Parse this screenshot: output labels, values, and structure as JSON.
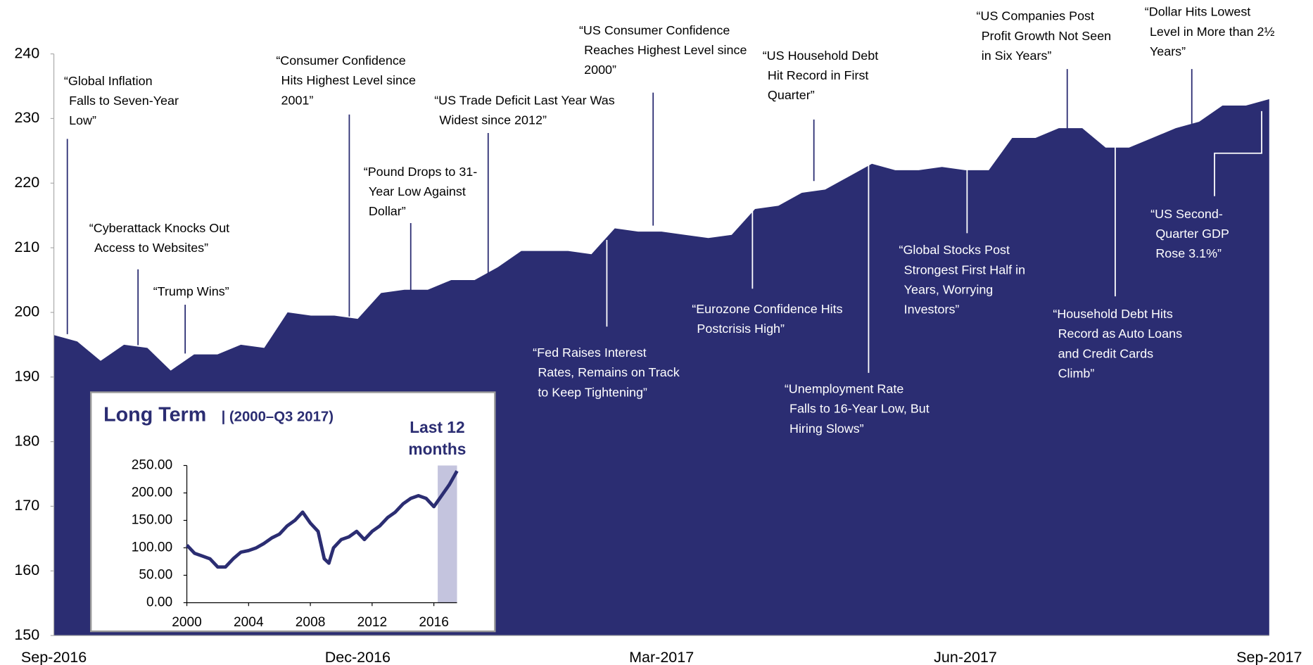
{
  "chart_data": [
    {
      "type": "area",
      "categories": [
        "Sep-2016",
        null,
        null,
        null,
        null,
        null,
        null,
        null,
        null,
        null,
        null,
        null,
        null,
        "Dec-2016",
        null,
        null,
        null,
        null,
        null,
        null,
        null,
        null,
        null,
        null,
        null,
        null,
        "Mar-2017",
        null,
        null,
        null,
        null,
        null,
        null,
        null,
        null,
        null,
        null,
        null,
        null,
        "Jun-2017",
        null,
        null,
        null,
        null,
        null,
        null,
        null,
        null,
        null,
        null,
        null,
        null,
        "Sep-2017"
      ],
      "values": [
        196.5,
        195.5,
        192.5,
        195,
        194.5,
        191,
        193.5,
        193.5,
        195,
        194.5,
        200,
        199.5,
        199.5,
        199,
        203,
        203.5,
        203.5,
        205,
        205,
        207,
        209.5,
        209.5,
        209.5,
        209,
        213,
        212.5,
        212.5,
        212,
        211.5,
        212,
        216,
        216.5,
        218.5,
        219,
        221,
        223,
        222,
        222,
        222.5,
        222,
        222,
        227,
        227,
        228.5,
        228.5,
        225.5,
        225.5,
        227,
        228.5,
        229.5,
        232,
        232,
        233
      ],
      "color": "#2b2d72",
      "ylim": [
        150,
        240
      ],
      "yticks": [
        150,
        160,
        170,
        180,
        190,
        200,
        210,
        220,
        230,
        240
      ],
      "annotations": [
        [
          "“Global Inflation",
          "Falls to Seven-Year",
          "Low”"
        ],
        [
          "“Cyberattack Knocks Out",
          "Access to Websites”"
        ],
        [
          "“Trump Wins”"
        ],
        [
          "“Consumer Confidence",
          "Hits Highest Level since",
          "2001”"
        ],
        [
          "“Pound Drops to 31-",
          "Year Low Against",
          "Dollar”"
        ],
        [
          "“US Trade Deficit Last Year Was",
          "Widest since 2012”"
        ],
        [
          "“US Consumer Confidence",
          "Reaches Highest Level since",
          "2000”"
        ],
        [
          "“Fed Raises Interest",
          "Rates, Remains on Track",
          "to Keep Tightening”"
        ],
        [
          "“US Household Debt",
          "Hit Record in First",
          "Quarter”"
        ],
        [
          "“Eurozone Confidence Hits",
          "Postcrisis High”"
        ],
        [
          "“Unemployment Rate",
          "Falls to 16-Year Low, But",
          "Hiring Slows”"
        ],
        [
          "“Global Stocks Post",
          "Strongest First Half in",
          "Years, Worrying",
          "Investors”"
        ],
        [
          "“US Companies Post",
          "Profit Growth Not Seen",
          "in Six Years”"
        ],
        [
          "“Household Debt Hits",
          "Record as Auto Loans",
          "and Credit Cards",
          "Climb”"
        ],
        [
          "“Dollar Hits Lowest",
          "Level in More than 2½",
          "Years”"
        ],
        [
          "“US Second-",
          "Quarter GDP",
          "Rose 3.1%”"
        ]
      ]
    },
    {
      "type": "line",
      "title": "Long Term",
      "subtitle": "|  (2000–Q3 2017)",
      "highlight_label": [
        "Last 12",
        "months"
      ],
      "highlight_range": [
        2016.25,
        2017.5
      ],
      "highlight_color": "#c4c4de",
      "x": [
        2000,
        2000.5,
        2001,
        2001.5,
        2002,
        2002.5,
        2003,
        2003.5,
        2004,
        2004.5,
        2005,
        2005.5,
        2006,
        2006.5,
        2007,
        2007.5,
        2008,
        2008.5,
        2008.9,
        2009.2,
        2009.5,
        2010,
        2010.5,
        2011,
        2011.5,
        2012,
        2012.5,
        2013,
        2013.5,
        2014,
        2014.5,
        2015,
        2015.5,
        2016,
        2016.5,
        2017,
        2017.5
      ],
      "values": [
        105,
        90,
        85,
        80,
        65,
        65,
        80,
        92,
        95,
        100,
        108,
        118,
        125,
        140,
        150,
        165,
        145,
        130,
        80,
        72,
        100,
        115,
        120,
        130,
        115,
        130,
        140,
        155,
        165,
        180,
        190,
        195,
        190,
        175,
        195,
        215,
        240
      ],
      "color": "#2b2d72",
      "xlim": [
        2000,
        2017.5
      ],
      "xticks": [
        2000,
        2004,
        2008,
        2012,
        2016
      ],
      "ylim": [
        0,
        250
      ],
      "yticks": [
        {
          "value": 0,
          "label": "0.00"
        },
        {
          "value": 50,
          "label": "50.00"
        },
        {
          "value": 100,
          "label": "100.00"
        },
        {
          "value": 150,
          "label": "150.00"
        },
        {
          "value": 200,
          "label": "200.00"
        },
        {
          "value": 250,
          "label": "250.00"
        }
      ]
    }
  ]
}
